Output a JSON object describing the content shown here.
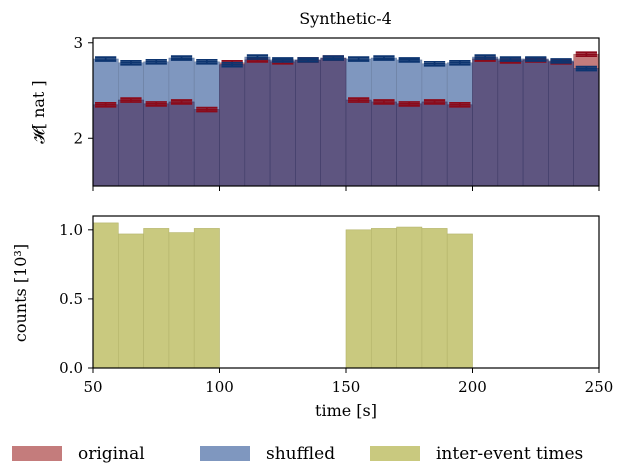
{
  "chart_data": [
    {
      "type": "bar",
      "title": "Synthetic-4",
      "xlabel": "",
      "ylabel": "𝓗[ nat ]",
      "xlim": [
        50,
        250
      ],
      "ylim": [
        1.5,
        3.05
      ],
      "yticks": [
        2,
        3
      ],
      "xticks": [
        50,
        100,
        150,
        200,
        250
      ],
      "bin_edges": [
        50,
        60,
        70,
        80,
        90,
        100,
        110,
        120,
        130,
        140,
        150,
        160,
        170,
        180,
        190,
        200,
        210,
        220,
        230,
        240,
        250
      ],
      "series": [
        {
          "name": "original",
          "color": "#c47c7c",
          "errorbar_color": "#8b0a1a",
          "values": [
            2.35,
            2.4,
            2.36,
            2.38,
            2.3,
            2.79,
            2.82,
            2.8,
            2.82,
            2.84,
            2.4,
            2.38,
            2.36,
            2.38,
            2.35,
            2.83,
            2.81,
            2.82,
            2.8,
            2.88
          ]
        },
        {
          "name": "shuffled",
          "color": "#7f97bf",
          "errorbar_color": "#0d3570",
          "values": [
            2.83,
            2.79,
            2.8,
            2.84,
            2.8,
            2.77,
            2.85,
            2.82,
            2.82,
            2.84,
            2.83,
            2.84,
            2.82,
            2.78,
            2.79,
            2.85,
            2.83,
            2.83,
            2.81,
            2.73
          ]
        }
      ],
      "errorbar_halfwidth": 0.02,
      "grid": false,
      "legend": "bottom, shared"
    },
    {
      "type": "bar",
      "title": "",
      "xlabel": "time [s]",
      "ylabel": "counts [10³]",
      "xlim": [
        50,
        250
      ],
      "ylim": [
        0,
        1.1
      ],
      "yticks": [
        0.0,
        0.5,
        1.0
      ],
      "ytick_labels": [
        "0.0",
        "0.5",
        "1.0"
      ],
      "xticks": [
        50,
        100,
        150,
        200,
        250
      ],
      "bin_edges": [
        50,
        60,
        70,
        80,
        90,
        100,
        110,
        120,
        130,
        140,
        150,
        160,
        170,
        180,
        190,
        200,
        210,
        220,
        230,
        240,
        250
      ],
      "series": [
        {
          "name": "inter-event times",
          "color": "#c9c97f",
          "values": [
            1.05,
            0.97,
            1.01,
            0.98,
            1.01,
            0,
            0,
            0,
            0,
            0,
            1.0,
            1.01,
            1.02,
            1.01,
            0.97,
            0,
            0,
            0,
            0,
            0
          ]
        }
      ],
      "grid": false
    }
  ],
  "legend": {
    "items": [
      {
        "label": "original",
        "color": "#c47c7c"
      },
      {
        "label": "shuffled",
        "color": "#7f97bf"
      },
      {
        "label": "inter-event times",
        "color": "#c9c97f"
      }
    ]
  }
}
